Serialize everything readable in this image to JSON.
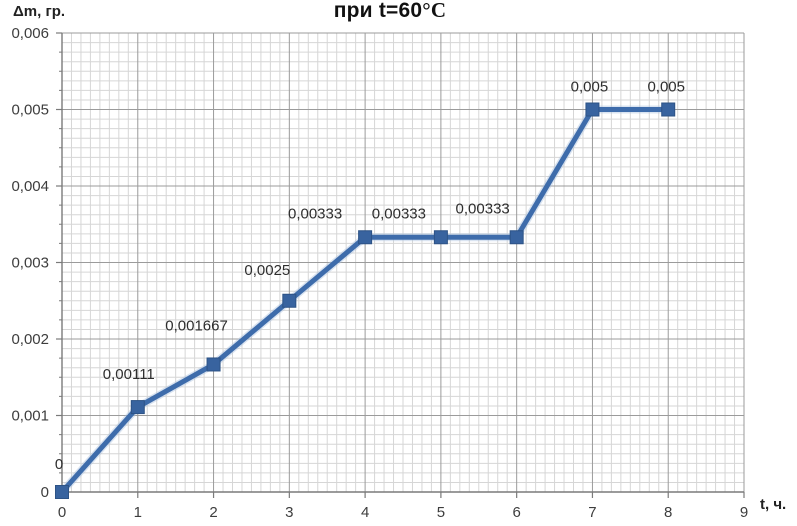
{
  "chart_data": {
    "type": "line",
    "title": "при t=60°C",
    "title_prefix": "при t=60",
    "title_suffix": "°C",
    "xlabel": "t, ч.",
    "ylabel": "Δm, гр.",
    "points": [
      {
        "x": 0,
        "y": 0,
        "label": "0"
      },
      {
        "x": 1,
        "y": 0.00111,
        "label": "0,00111"
      },
      {
        "x": 2,
        "y": 0.001667,
        "label": "0,001667"
      },
      {
        "x": 3,
        "y": 0.0025,
        "label": "0,0025"
      },
      {
        "x": 4,
        "y": 0.00333,
        "label": "0,00333"
      },
      {
        "x": 5,
        "y": 0.00333,
        "label": "0,00333"
      },
      {
        "x": 6,
        "y": 0.00333,
        "label": "0,00333"
      },
      {
        "x": 7,
        "y": 0.005,
        "label": "0,005"
      },
      {
        "x": 8,
        "y": 0.005,
        "label": "0,005"
      }
    ],
    "xlim": [
      0,
      9
    ],
    "ylim": [
      0,
      0.006
    ],
    "x_ticks": [
      {
        "value": 0,
        "label": "0"
      },
      {
        "value": 1,
        "label": "1"
      },
      {
        "value": 2,
        "label": "2"
      },
      {
        "value": 3,
        "label": "3"
      },
      {
        "value": 4,
        "label": "4"
      },
      {
        "value": 5,
        "label": "5"
      },
      {
        "value": 6,
        "label": "6"
      },
      {
        "value": 7,
        "label": "7"
      },
      {
        "value": 8,
        "label": "8"
      },
      {
        "value": 9,
        "label": "9"
      }
    ],
    "y_ticks": [
      {
        "value": 0,
        "label": "0"
      },
      {
        "value": 0.001,
        "label": "0,001"
      },
      {
        "value": 0.002,
        "label": "0,002"
      },
      {
        "value": 0.003,
        "label": "0,003"
      },
      {
        "value": 0.004,
        "label": "0,004"
      },
      {
        "value": 0.005,
        "label": "0,005"
      },
      {
        "value": 0.006,
        "label": "0,006"
      }
    ],
    "grid": "major+minor",
    "minor_subdivisions_per_major": 8,
    "legend": "none",
    "marker": "square",
    "colors": {
      "series_line": "#3e6cab",
      "series_halo": "#aec4e0",
      "marker_fill": "#38639f",
      "marker_stroke": "#2d5386",
      "grid_minor": "#d6d6d6",
      "grid_major": "#9b9b9b",
      "axis": "#7a7a7a",
      "text": "#3d3d3d",
      "background": "#ffffff"
    }
  }
}
